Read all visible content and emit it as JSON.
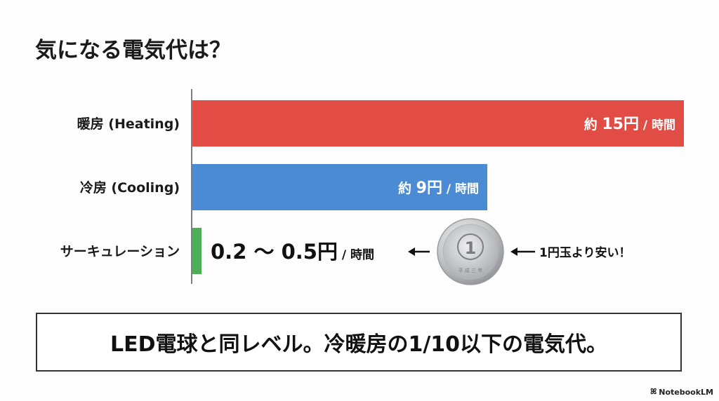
{
  "title": "気になる電気代は？",
  "chart_data": {
    "type": "bar",
    "orientation": "horizontal",
    "title": "気になる電気代は？",
    "unit": "円 / 時間",
    "categories": [
      "暖房 (Heating)",
      "冷房 (Cooling)",
      "サーキュレーション"
    ],
    "values": [
      15,
      9,
      0.5
    ],
    "value_labels": [
      {
        "prefix": "約 ",
        "number": "15円",
        "suffix": " / 時間"
      },
      {
        "prefix": "約 ",
        "number": "9円",
        "suffix": " / 時間"
      },
      {
        "prefix": "",
        "number": "0.2 〜 0.5円",
        "suffix": " / 時間"
      }
    ],
    "colors": [
      "#e14d45",
      "#4a8bd3",
      "#4cae57"
    ],
    "xlim": [
      0,
      15
    ],
    "grid": false
  },
  "annotation": {
    "coin_text": "1",
    "coin_sub": "平 成 三 年",
    "note": "1円玉より安い！"
  },
  "footer": {
    "text": "LED電球と同レベル。冷暖房の1/10以下の電気代。"
  },
  "brand": {
    "name": "NotebookLM"
  }
}
